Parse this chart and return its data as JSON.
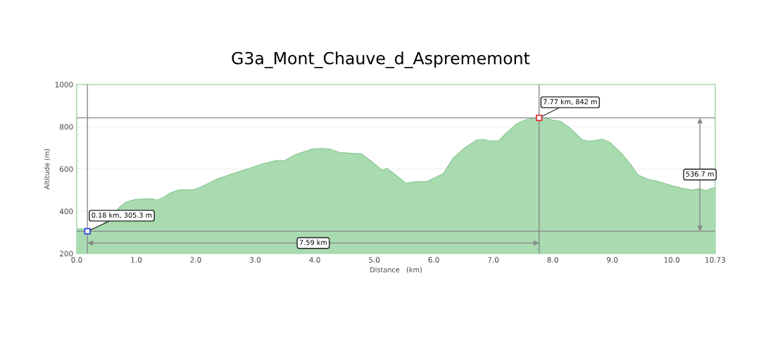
{
  "chart_data": {
    "type": "area",
    "title": "G3a_Mont_Chauve_d_Asprememont",
    "xlabel": "Distance   (km)",
    "ylabel": "Altitude (m)",
    "xlim": [
      0,
      10.73
    ],
    "ylim": [
      200,
      1000
    ],
    "xticks": [
      {
        "value": 0,
        "label": "0.0"
      },
      {
        "value": 1,
        "label": "1.0"
      },
      {
        "value": 2,
        "label": "2.0"
      },
      {
        "value": 3,
        "label": "3.0"
      },
      {
        "value": 4,
        "label": "4.0"
      },
      {
        "value": 5,
        "label": "5.0"
      },
      {
        "value": 6,
        "label": "6.0"
      },
      {
        "value": 7,
        "label": "7.0"
      },
      {
        "value": 8,
        "label": "8.0"
      },
      {
        "value": 9,
        "label": "9.0"
      },
      {
        "value": 10,
        "label": "10.0"
      },
      {
        "value": 10.73,
        "label": "10.73"
      }
    ],
    "yticks": [
      200,
      400,
      600,
      800,
      1000
    ],
    "grid": "y",
    "series": [
      {
        "color": "#a8dbb0",
        "x": [
          0,
          0.08,
          0.18,
          0.44,
          0.73,
          0.83,
          0.99,
          1.27,
          1.35,
          1.47,
          1.59,
          1.71,
          1.98,
          2.06,
          2.34,
          2.62,
          2.9,
          3.1,
          3.33,
          3.49,
          3.67,
          3.95,
          4.11,
          4.26,
          4.42,
          4.62,
          4.78,
          4.94,
          5.13,
          5.21,
          5.33,
          5.53,
          5.69,
          5.89,
          6.16,
          6.32,
          6.52,
          6.72,
          6.83,
          6.95,
          7.09,
          7.22,
          7.38,
          7.54,
          7.7,
          7.77,
          7.9,
          8.01,
          8.13,
          8.29,
          8.49,
          8.57,
          8.68,
          8.82,
          8.96,
          9.16,
          9.32,
          9.43,
          9.59,
          9.79,
          9.99,
          10.19,
          10.34,
          10.46,
          10.58,
          10.66,
          10.73
        ],
        "values": [
          317,
          317,
          305.3,
          339,
          422,
          444,
          456,
          459,
          452,
          467,
          489,
          500,
          503,
          511,
          550,
          578,
          603,
          622,
          639,
          639,
          667,
          694,
          697,
          694,
          678,
          674,
          672,
          639,
          594,
          603,
          578,
          533,
          539,
          541,
          578,
          650,
          700,
          737,
          739,
          733,
          733,
          770,
          811,
          833,
          841,
          842,
          840,
          830,
          826,
          794,
          739,
          733,
          733,
          741,
          726,
          672,
          617,
          572,
          552,
          539,
          522,
          508,
          500,
          506,
          497,
          508,
          511
        ]
      },
      {
        "type": "scatter",
        "marker": "square",
        "colors": [
          "#3344ee",
          "#dd3333"
        ],
        "x": [
          0.18,
          7.77
        ],
        "values": [
          305.3,
          842
        ]
      }
    ],
    "ref_lines": [
      {
        "axis": "x",
        "value": 0.18,
        "color": "#888888"
      },
      {
        "axis": "x",
        "value": 7.77,
        "color": "#888888"
      },
      {
        "axis": "y",
        "value": 305.3,
        "color": "#888888"
      },
      {
        "axis": "y",
        "value": 842,
        "color": "#888888"
      }
    ],
    "annotations": [
      {
        "text": "0.18 km, 305.3 m",
        "x": 0.18,
        "y": 305.3
      },
      {
        "text": "7.77 km, 842 m",
        "x": 7.77,
        "y": 842
      },
      "7.59 km",
      "536.7 m"
    ]
  }
}
